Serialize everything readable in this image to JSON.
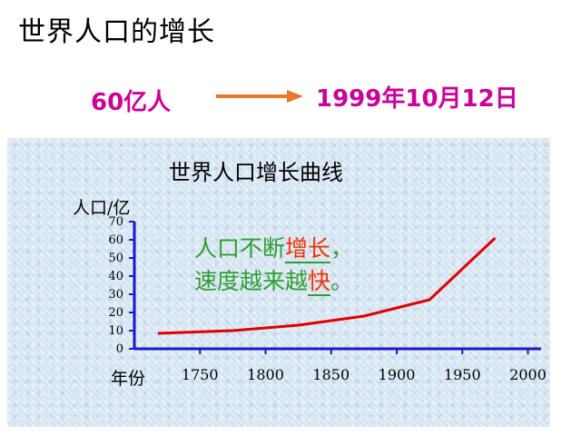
{
  "slide": {
    "title": "世界人口的增长",
    "fact_left": "60亿人",
    "fact_right": "1999年10月12日"
  },
  "annotation": {
    "line1_prefix": "人口不断",
    "line1_highlight": "增长",
    "line1_suffix": "，",
    "line2_prefix": "速度越来越",
    "line2_highlight": "快",
    "line2_suffix": "。"
  },
  "colors": {
    "fact": "#cc0099",
    "arrow": "#e8782a",
    "axis": "#1a1acc",
    "line": "#e00000",
    "annotation_text": "#2e9e2e",
    "annotation_highlight": "#ee3300",
    "panel_bg": "#dbe8f4"
  },
  "chart_data": {
    "type": "line",
    "title": "世界人口增长曲线",
    "ylabel": "人口/亿",
    "xlabel": "年份",
    "x_ticks": [
      "1750",
      "1800",
      "1850",
      "1900",
      "1950",
      "2000"
    ],
    "y_ticks": [
      "0",
      "10",
      "20",
      "30",
      "40",
      "50",
      "60",
      "70"
    ],
    "xlim": [
      1700,
      2010
    ],
    "ylim": [
      0,
      70
    ],
    "grid": false,
    "legend": "none",
    "series": [
      {
        "x": [
          1718,
          1775,
          1825,
          1875,
          1925,
          1975
        ],
        "values": [
          8.5,
          10,
          13,
          18,
          27,
          61
        ]
      }
    ]
  }
}
